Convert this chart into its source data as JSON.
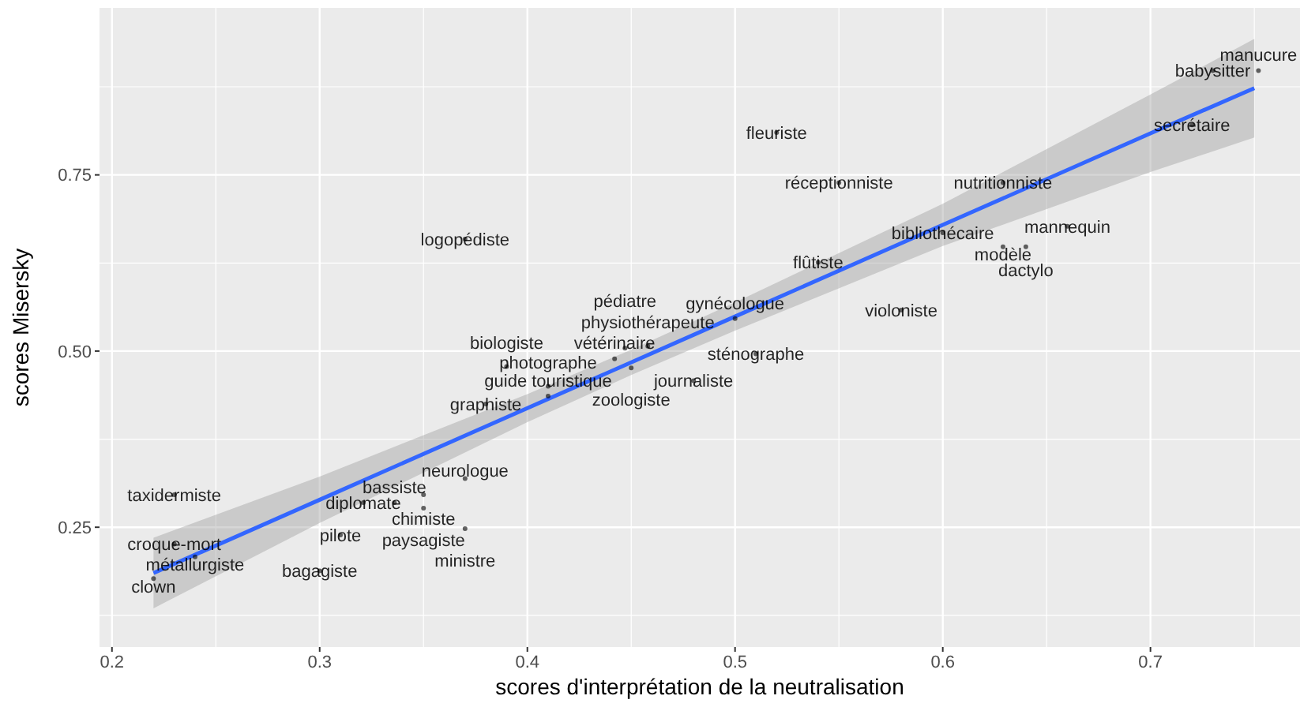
{
  "chart_data": {
    "type": "scatter",
    "xlabel": "scores d'interprétation de la neutralisation",
    "ylabel": "scores Misersky",
    "xlim": [
      0.194,
      0.772
    ],
    "ylim": [
      0.08,
      0.987
    ],
    "xticks": [
      0.2,
      0.3,
      0.4,
      0.5,
      0.6,
      0.7
    ],
    "yticks": [
      {
        "value": 0.25,
        "label": "0.25"
      },
      {
        "value": 0.5,
        "label": "0.50"
      },
      {
        "value": 0.75,
        "label": "0.75"
      }
    ],
    "grid": true,
    "series": [
      {
        "type": "scatter",
        "marker": "circle",
        "color": "#000000",
        "x": [
          0.23,
          0.23,
          0.24,
          0.22,
          0.3,
          0.31,
          0.321,
          0.336,
          0.35,
          0.35,
          0.37,
          0.37,
          0.38,
          0.41,
          0.41,
          0.39,
          0.442,
          0.458,
          0.447,
          0.45,
          0.51,
          0.48,
          0.5,
          0.58,
          0.37,
          0.54,
          0.52,
          0.55,
          0.629,
          0.6,
          0.66,
          0.629,
          0.64,
          0.72,
          0.73,
          0.752
        ],
        "values": [
          0.296,
          0.226,
          0.208,
          0.177,
          0.188,
          0.239,
          0.285,
          0.285,
          0.296,
          0.277,
          0.319,
          0.248,
          0.425,
          0.436,
          0.45,
          0.478,
          0.489,
          0.507,
          0.504,
          0.476,
          0.496,
          0.458,
          0.546,
          0.558,
          0.659,
          0.626,
          0.81,
          0.739,
          0.739,
          0.668,
          0.677,
          0.648,
          0.648,
          0.821,
          0.898,
          0.898
        ],
        "value_labels": [
          "taxidermiste",
          "croque-mort",
          "métallurgiste",
          "clown",
          "bagagiste",
          "pilote",
          "diplomate",
          "bassiste",
          "chimiste",
          "paysagiste",
          "neurologue",
          "ministre",
          "graphiste",
          "guide touristique",
          "photographe",
          "biologiste",
          "vétérinaire",
          "physiothérapeute",
          "pédiatre",
          "zoologiste",
          "sténographe",
          "journaliste",
          "gynécologue",
          "violoniste",
          "logopédiste",
          "flûtiste",
          "fleuriste",
          "réceptionniste",
          "nutritionniste",
          "bibliothécaire",
          "mannequin",
          "modèle",
          "dactylo",
          "secrétaire",
          "babysitter",
          "manucure"
        ]
      },
      {
        "type": "line",
        "color": "#3366ff",
        "line_style": "solid",
        "x": [
          0.22,
          0.3,
          0.4,
          0.45,
          0.5,
          0.6,
          0.7,
          0.75
        ],
        "values": [
          0.185,
          0.289,
          0.419,
          0.484,
          0.549,
          0.679,
          0.809,
          0.873
        ],
        "lower": [
          0.135,
          0.256,
          0.399,
          0.466,
          0.529,
          0.649,
          0.754,
          0.803
        ],
        "upper": [
          0.235,
          0.322,
          0.439,
          0.502,
          0.569,
          0.709,
          0.864,
          0.943
        ]
      }
    ]
  }
}
